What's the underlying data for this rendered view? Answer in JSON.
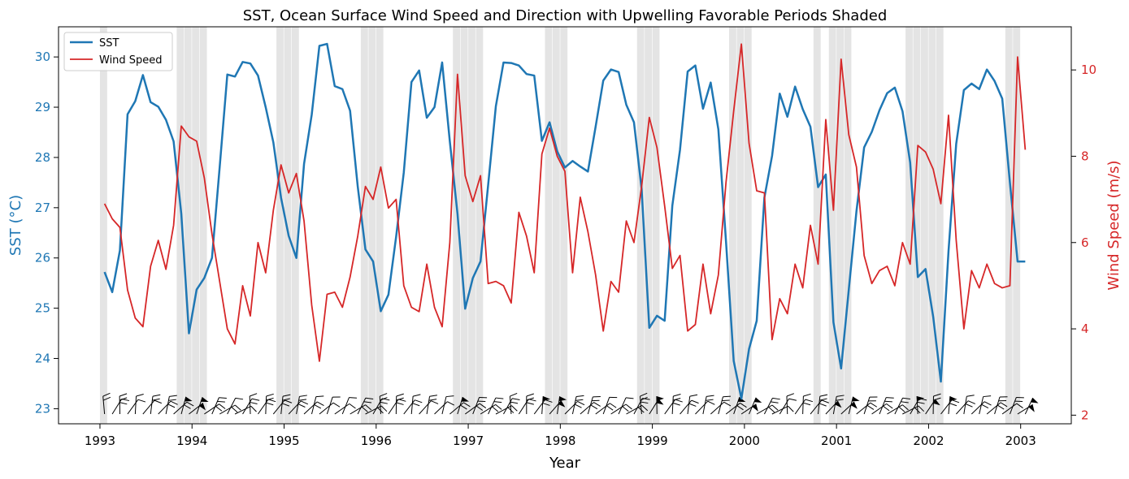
{
  "chart_data": {
    "type": "line",
    "title": "SST, Ocean Surface Wind Speed and Direction with Upwelling Favorable Periods Shaded",
    "xlabel": "Year",
    "ylabel_left": "SST (°C)",
    "ylabel_right": "Wind Speed (m/s)",
    "x_ticks": [
      "1993",
      "1994",
      "1995",
      "1996",
      "1997",
      "1998",
      "1999",
      "2000",
      "2001",
      "2002",
      "2003"
    ],
    "y_left_ticks": [
      "23",
      "24",
      "25",
      "26",
      "27",
      "28",
      "29",
      "30"
    ],
    "y_right_ticks": [
      "2",
      "4",
      "6",
      "8",
      "10"
    ],
    "ylim_left": [
      22.7,
      30.6
    ],
    "ylim_right": [
      1.8,
      11.0
    ],
    "legend_placement": "top-left",
    "colors": {
      "sst": "#1f77b4",
      "wind": "#d62728",
      "shade": "#d9d9d9",
      "barb": "#000000"
    },
    "dates": [
      "1993-01",
      "1993-02",
      "1993-03",
      "1993-04",
      "1993-05",
      "1993-06",
      "1993-07",
      "1993-08",
      "1993-09",
      "1993-10",
      "1993-11",
      "1993-12",
      "1994-01",
      "1994-02",
      "1994-03",
      "1994-04",
      "1994-05",
      "1994-06",
      "1994-07",
      "1994-08",
      "1994-09",
      "1994-10",
      "1994-11",
      "1994-12",
      "1995-01",
      "1995-02",
      "1995-03",
      "1995-04",
      "1995-05",
      "1995-06",
      "1995-07",
      "1995-08",
      "1995-09",
      "1995-10",
      "1995-11",
      "1995-12",
      "1996-01",
      "1996-02",
      "1996-03",
      "1996-04",
      "1996-05",
      "1996-06",
      "1996-07",
      "1996-08",
      "1996-09",
      "1996-10",
      "1996-11",
      "1996-12",
      "1997-01",
      "1997-02",
      "1997-03",
      "1997-04",
      "1997-05",
      "1997-06",
      "1997-07",
      "1997-08",
      "1997-09",
      "1997-10",
      "1997-11",
      "1997-12",
      "1998-01",
      "1998-02",
      "1998-03",
      "1998-04",
      "1998-05",
      "1998-06",
      "1998-07",
      "1998-08",
      "1998-09",
      "1998-10",
      "1998-11",
      "1998-12",
      "1999-01",
      "1999-02",
      "1999-03",
      "1999-04",
      "1999-05",
      "1999-06",
      "1999-07",
      "1999-08",
      "1999-09",
      "1999-10",
      "1999-11",
      "1999-12",
      "2000-01",
      "2000-02",
      "2000-03",
      "2000-04",
      "2000-05",
      "2000-06",
      "2000-07",
      "2000-08",
      "2000-09",
      "2000-10",
      "2000-11",
      "2000-12",
      "2001-01",
      "2001-02",
      "2001-03",
      "2001-04",
      "2001-05",
      "2001-06",
      "2001-07",
      "2001-08",
      "2001-09",
      "2001-10",
      "2001-11",
      "2001-12",
      "2002-01",
      "2002-02",
      "2002-03",
      "2002-04",
      "2002-05",
      "2002-06",
      "2002-07",
      "2002-08",
      "2002-09",
      "2002-10",
      "2002-11",
      "2002-12",
      "2003-01"
    ],
    "series": [
      {
        "name": "SST",
        "axis": "left",
        "values": [
          25.72,
          25.32,
          26.15,
          28.86,
          29.12,
          29.64,
          29.1,
          29.01,
          28.75,
          28.32,
          26.88,
          24.5,
          25.37,
          25.6,
          26.0,
          27.8,
          29.65,
          29.61,
          29.9,
          29.87,
          29.63,
          29.0,
          28.3,
          27.2,
          26.44,
          26.0,
          27.87,
          28.85,
          30.22,
          30.26,
          29.42,
          29.36,
          28.93,
          27.42,
          26.17,
          25.93,
          24.94,
          25.27,
          26.42,
          27.7,
          29.5,
          29.73,
          28.79,
          29.0,
          29.89,
          28.32,
          26.88,
          24.99,
          25.6,
          25.93,
          27.46,
          29.02,
          29.89,
          29.88,
          29.83,
          29.66,
          29.63,
          28.33,
          28.7,
          28.12,
          27.8,
          27.93,
          27.82,
          27.72,
          28.61,
          29.53,
          29.75,
          29.7,
          29.05,
          28.7,
          27.37,
          24.61,
          24.85,
          24.75,
          27.04,
          28.15,
          29.71,
          29.83,
          28.97,
          29.49,
          28.56,
          26.32,
          23.95,
          23.2,
          24.19,
          24.75,
          27.2,
          28.03,
          29.27,
          28.81,
          29.41,
          28.96,
          28.61,
          27.41,
          27.66,
          24.72,
          23.8,
          25.37,
          26.93,
          28.2,
          28.51,
          28.94,
          29.28,
          29.39,
          28.92,
          27.9,
          25.62,
          25.78,
          24.83,
          23.54,
          26.14,
          28.27,
          29.34,
          29.47,
          29.36,
          29.75,
          29.52,
          29.17,
          27.5,
          25.93,
          25.93
        ]
      },
      {
        "name": "Wind Speed",
        "axis": "right",
        "values": [
          6.9,
          6.55,
          6.35,
          4.9,
          4.25,
          4.05,
          5.45,
          6.05,
          5.38,
          6.4,
          8.7,
          8.45,
          8.35,
          7.5,
          6.2,
          5.1,
          4.0,
          3.65,
          5.0,
          4.3,
          6.0,
          5.3,
          6.75,
          7.8,
          7.15,
          7.6,
          6.5,
          4.55,
          3.25,
          4.8,
          4.85,
          4.5,
          5.2,
          6.15,
          7.3,
          7.0,
          7.75,
          6.8,
          7.0,
          5.0,
          4.5,
          4.4,
          5.5,
          4.5,
          4.05,
          6.0,
          9.9,
          7.55,
          6.95,
          7.55,
          5.05,
          5.1,
          5.0,
          4.6,
          6.7,
          6.15,
          5.3,
          8.05,
          8.65,
          8.0,
          7.65,
          5.3,
          7.05,
          6.25,
          5.25,
          3.95,
          5.1,
          4.85,
          6.5,
          6.0,
          7.3,
          8.9,
          8.2,
          6.85,
          5.4,
          5.7,
          3.95,
          4.1,
          5.5,
          4.35,
          5.25,
          7.4,
          9.05,
          10.6,
          8.3,
          7.2,
          7.15,
          3.75,
          4.7,
          4.35,
          5.5,
          4.95,
          6.4,
          5.5,
          8.85,
          6.75,
          10.25,
          8.5,
          7.75,
          5.7,
          5.05,
          5.35,
          5.45,
          5.0,
          6.0,
          5.5,
          8.25,
          8.1,
          7.7,
          6.9,
          8.95,
          6.05,
          4.0,
          5.35,
          4.95,
          5.5,
          5.05,
          4.95,
          5.0,
          10.3,
          8.15
        ]
      }
    ],
    "upwelling_periods": [
      [
        "1993-01",
        "1993-01"
      ],
      [
        "1993-11",
        "1994-02"
      ],
      [
        "1994-12",
        "1995-02"
      ],
      [
        "1995-11",
        "1996-01"
      ],
      [
        "1996-11",
        "1997-02"
      ],
      [
        "1997-11",
        "1998-01"
      ],
      [
        "1998-11",
        "1999-01"
      ],
      [
        "1999-11",
        "2000-01"
      ],
      [
        "2000-10",
        "2000-10"
      ],
      [
        "2000-12",
        "2001-02"
      ],
      [
        "2001-10",
        "2002-02"
      ],
      [
        "2002-11",
        "2002-12"
      ]
    ]
  }
}
